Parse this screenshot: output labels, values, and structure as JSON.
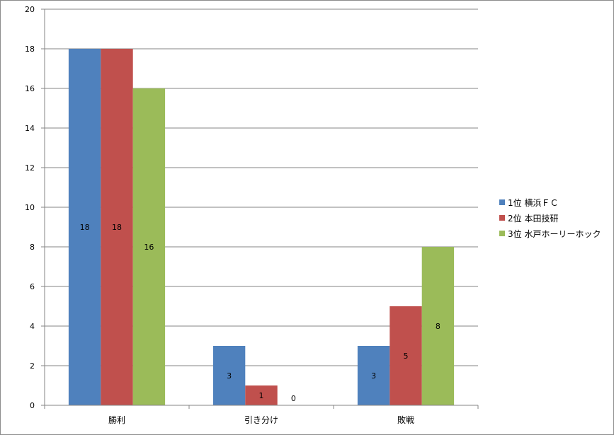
{
  "chart_data": {
    "type": "bar",
    "categories": [
      "勝利",
      "引き分け",
      "敗戦"
    ],
    "series": [
      {
        "name": "1位 横浜ＦＣ",
        "color": "#4f81bd",
        "values": [
          18,
          3,
          3
        ]
      },
      {
        "name": "2位 本田技研",
        "color": "#c0504d",
        "values": [
          18,
          1,
          5
        ]
      },
      {
        "name": "3位 水戸ホーリーホック",
        "color": "#9bbb59",
        "values": [
          16,
          0,
          8
        ]
      }
    ],
    "ylim": [
      0,
      20
    ],
    "yticks": [
      0,
      2,
      4,
      6,
      8,
      10,
      12,
      14,
      16,
      18,
      20
    ],
    "grid": true,
    "legend_position": "right",
    "data_labels": true,
    "title": "",
    "xlabel": "",
    "ylabel": ""
  }
}
